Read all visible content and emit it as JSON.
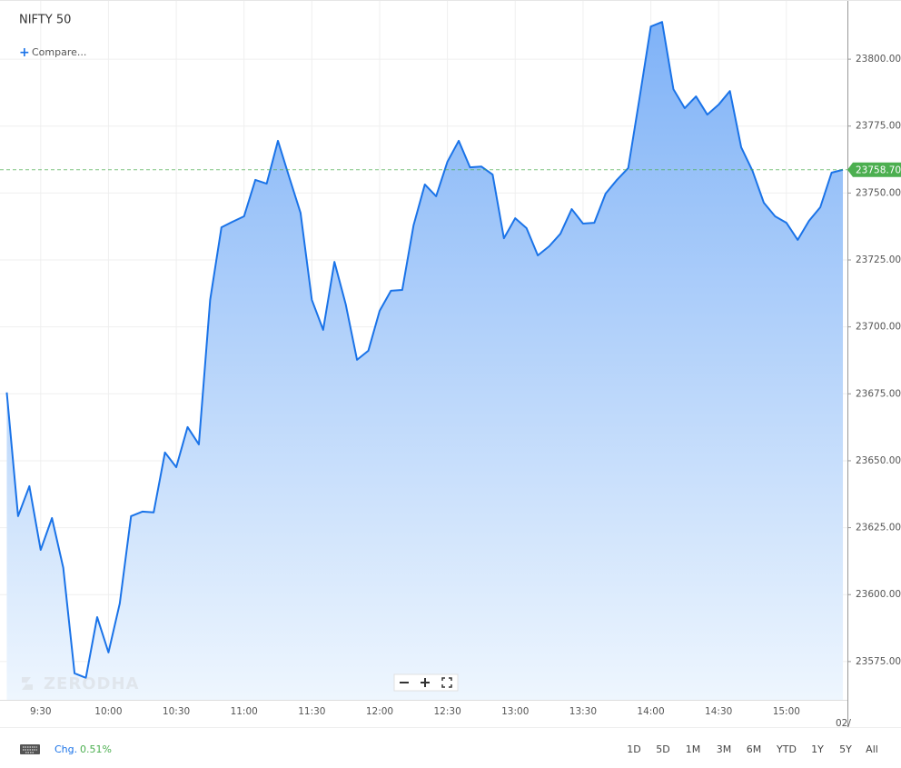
{
  "chart_data": {
    "type": "area",
    "title": "NIFTY 50",
    "compare_label": "Compare...",
    "watermark": "ZERODHA",
    "x": [
      "9:15",
      "9:20",
      "9:25",
      "9:30",
      "9:35",
      "9:40",
      "9:45",
      "9:50",
      "9:55",
      "10:00",
      "10:05",
      "10:10",
      "10:15",
      "10:20",
      "10:25",
      "10:30",
      "10:35",
      "10:40",
      "10:45",
      "10:50",
      "10:55",
      "11:00",
      "11:05",
      "11:10",
      "11:15",
      "11:20",
      "11:25",
      "11:30",
      "11:35",
      "11:40",
      "11:45",
      "11:50",
      "11:55",
      "12:00",
      "12:05",
      "12:10",
      "12:15",
      "12:20",
      "12:25",
      "12:30",
      "12:35",
      "12:40",
      "12:45",
      "12:50",
      "12:55",
      "13:00",
      "13:05",
      "13:10",
      "13:15",
      "13:20",
      "13:25",
      "13:30",
      "13:35",
      "13:40",
      "13:45",
      "13:50",
      "13:55",
      "14:00",
      "14:05",
      "14:10",
      "14:15",
      "14:20",
      "14:25",
      "14:30",
      "14:35",
      "14:40",
      "14:45",
      "14:50",
      "14:55",
      "15:00",
      "15:05",
      "15:10",
      "15:15",
      "15:20",
      "15:25"
    ],
    "series": [
      {
        "name": "NIFTY 50",
        "color": "#1a73e8",
        "values": [
          23675.5,
          23629.3,
          23640.5,
          23616.7,
          23628.6,
          23610.0,
          23570.6,
          23568.9,
          23591.6,
          23578.4,
          23596.7,
          23629.3,
          23631.0,
          23630.7,
          23653.1,
          23647.6,
          23662.6,
          23656.1,
          23710.1,
          23737.2,
          23739.3,
          23741.3,
          23754.9,
          23753.5,
          23769.5,
          23755.9,
          23742.6,
          23710.1,
          23698.9,
          23724.3,
          23708.4,
          23687.7,
          23691.1,
          23706.0,
          23713.5,
          23713.8,
          23737.9,
          23753.2,
          23748.8,
          23761.7,
          23769.5,
          23759.6,
          23759.9,
          23756.9,
          23733.1,
          23740.6,
          23736.9,
          23726.7,
          23730.1,
          23734.8,
          23744.0,
          23738.6,
          23738.9,
          23749.8,
          23754.9,
          23759.3,
          23785.4,
          23812.2,
          23813.9,
          23788.8,
          23781.7,
          23786.1,
          23779.3,
          23783.0,
          23788.1,
          23767.1,
          23758.3,
          23746.4,
          23741.3,
          23738.9,
          23732.5,
          23739.6,
          23744.7,
          23757.6,
          23758.7
        ]
      }
    ],
    "last_value": {
      "value": 23758.7,
      "label": "23758.70",
      "color": "#4caf50"
    },
    "xlim": [
      "9:12",
      "15:27"
    ],
    "xticks": [
      "9:30",
      "10:00",
      "10:30",
      "11:00",
      "11:30",
      "12:00",
      "12:30",
      "13:00",
      "13:30",
      "14:00",
      "14:30",
      "15:00"
    ],
    "x_date_label": "02/",
    "ylim": [
      23560.7,
      23822.1
    ],
    "yticks": [
      {
        "value": 23575,
        "label": "23575.00"
      },
      {
        "value": 23600,
        "label": "23600.00"
      },
      {
        "value": 23625,
        "label": "23625.00"
      },
      {
        "value": 23650,
        "label": "23650.00"
      },
      {
        "value": 23675,
        "label": "23675.00"
      },
      {
        "value": 23700,
        "label": "23700.00"
      },
      {
        "value": 23725,
        "label": "23725.00"
      },
      {
        "value": 23750,
        "label": "23750.00"
      },
      {
        "value": 23775,
        "label": "23775.00"
      },
      {
        "value": 23800,
        "label": "23800.00"
      }
    ],
    "grid": true,
    "footer": {
      "change_label": "Chg.",
      "change_value": "0.51%",
      "ranges": [
        "1D",
        "5D",
        "1M",
        "3M",
        "6M",
        "YTD",
        "1Y",
        "5Y",
        "All"
      ]
    }
  }
}
